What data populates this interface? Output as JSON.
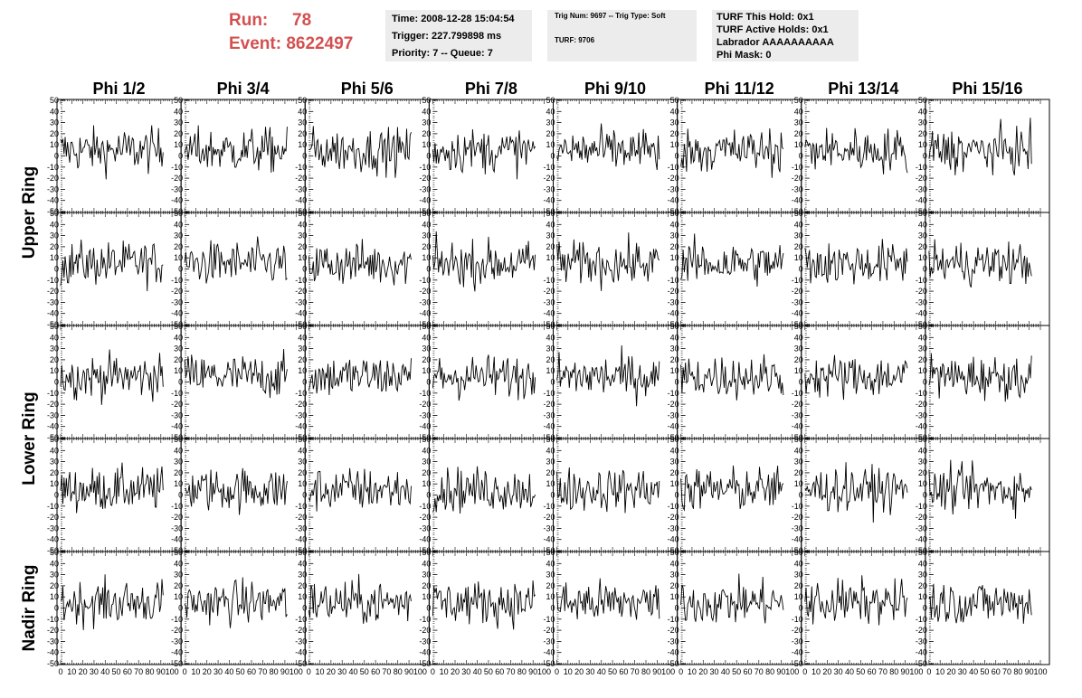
{
  "header": {
    "run_label": "Run:",
    "run_value": "78",
    "event_label": "Event:",
    "event_value": "8622497"
  },
  "info_time": {
    "time": "Time: 2008-12-28 15:04:54",
    "trigger": "Trigger: 227.799898 ms",
    "priority": "Priority: 7 -- Queue: 7"
  },
  "info_trig": {
    "trig": "Trig Num: 9697 -- Trig Type: Soft",
    "turf": "TURF: 9706"
  },
  "info_turf": {
    "hold": "TURF This Hold: 0x1",
    "active": "TURF Active Holds: 0x1",
    "labrador": "Labrador AAAAAAAAAA",
    "phimask": "Phi Mask: 0"
  },
  "colors": {
    "header_red": "#d45050",
    "info_bg": "#ececec",
    "trace": "#000000"
  },
  "chart_data": {
    "type": "line",
    "columns": [
      "Phi 1/2",
      "Phi 3/4",
      "Phi 5/6",
      "Phi 7/8",
      "Phi 9/10",
      "Phi 11/12",
      "Phi 13/14",
      "Phi 15/16"
    ],
    "rows": [
      "Upper Ring",
      "Lower Ring",
      "Nadir Ring"
    ],
    "panels_per_column": 5,
    "xlim": [
      0,
      100
    ],
    "ylim": [
      -50,
      50
    ],
    "x_ticks": [
      0,
      10,
      20,
      30,
      40,
      50,
      60,
      70,
      80,
      90,
      100
    ],
    "y_ticks": [
      -50,
      -40,
      -30,
      -20,
      -10,
      0,
      10,
      20,
      30,
      40,
      50
    ],
    "samples_per_trace": 90,
    "trace_description": "noise waveforms centered near y=5, amplitude roughly -40 to 45"
  }
}
